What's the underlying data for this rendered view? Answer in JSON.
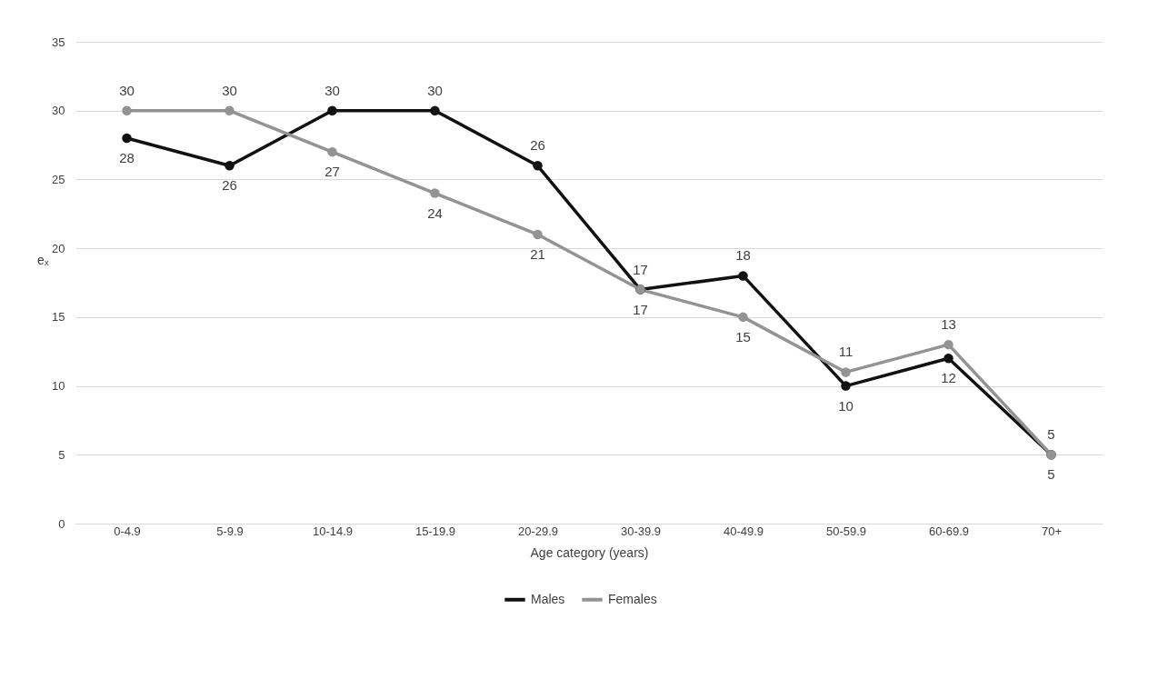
{
  "chart_data": {
    "type": "line",
    "xlabel": "Age category (years)",
    "ylabel": "eₓ",
    "categories": [
      "0-4.9",
      "5-9.9",
      "10-14.9",
      "15-19.9",
      "20-29.9",
      "30-39.9",
      "40-49.9",
      "50-59.9",
      "60-69.9",
      "70+"
    ],
    "series": [
      {
        "name": "Males",
        "color": "#111111",
        "values": [
          28,
          26,
          30,
          30,
          26,
          17,
          18,
          10,
          12,
          5
        ]
      },
      {
        "name": "Females",
        "color": "#939393",
        "values": [
          30,
          30,
          27,
          24,
          21,
          17,
          15,
          11,
          13,
          5
        ]
      }
    ],
    "ylim": [
      0,
      35
    ],
    "yticks": [
      0,
      5,
      10,
      15,
      20,
      25,
      30,
      35
    ],
    "grid": "y",
    "legend": "bottom",
    "marker": "circle",
    "line_style": "solid",
    "data_labels": true
  }
}
